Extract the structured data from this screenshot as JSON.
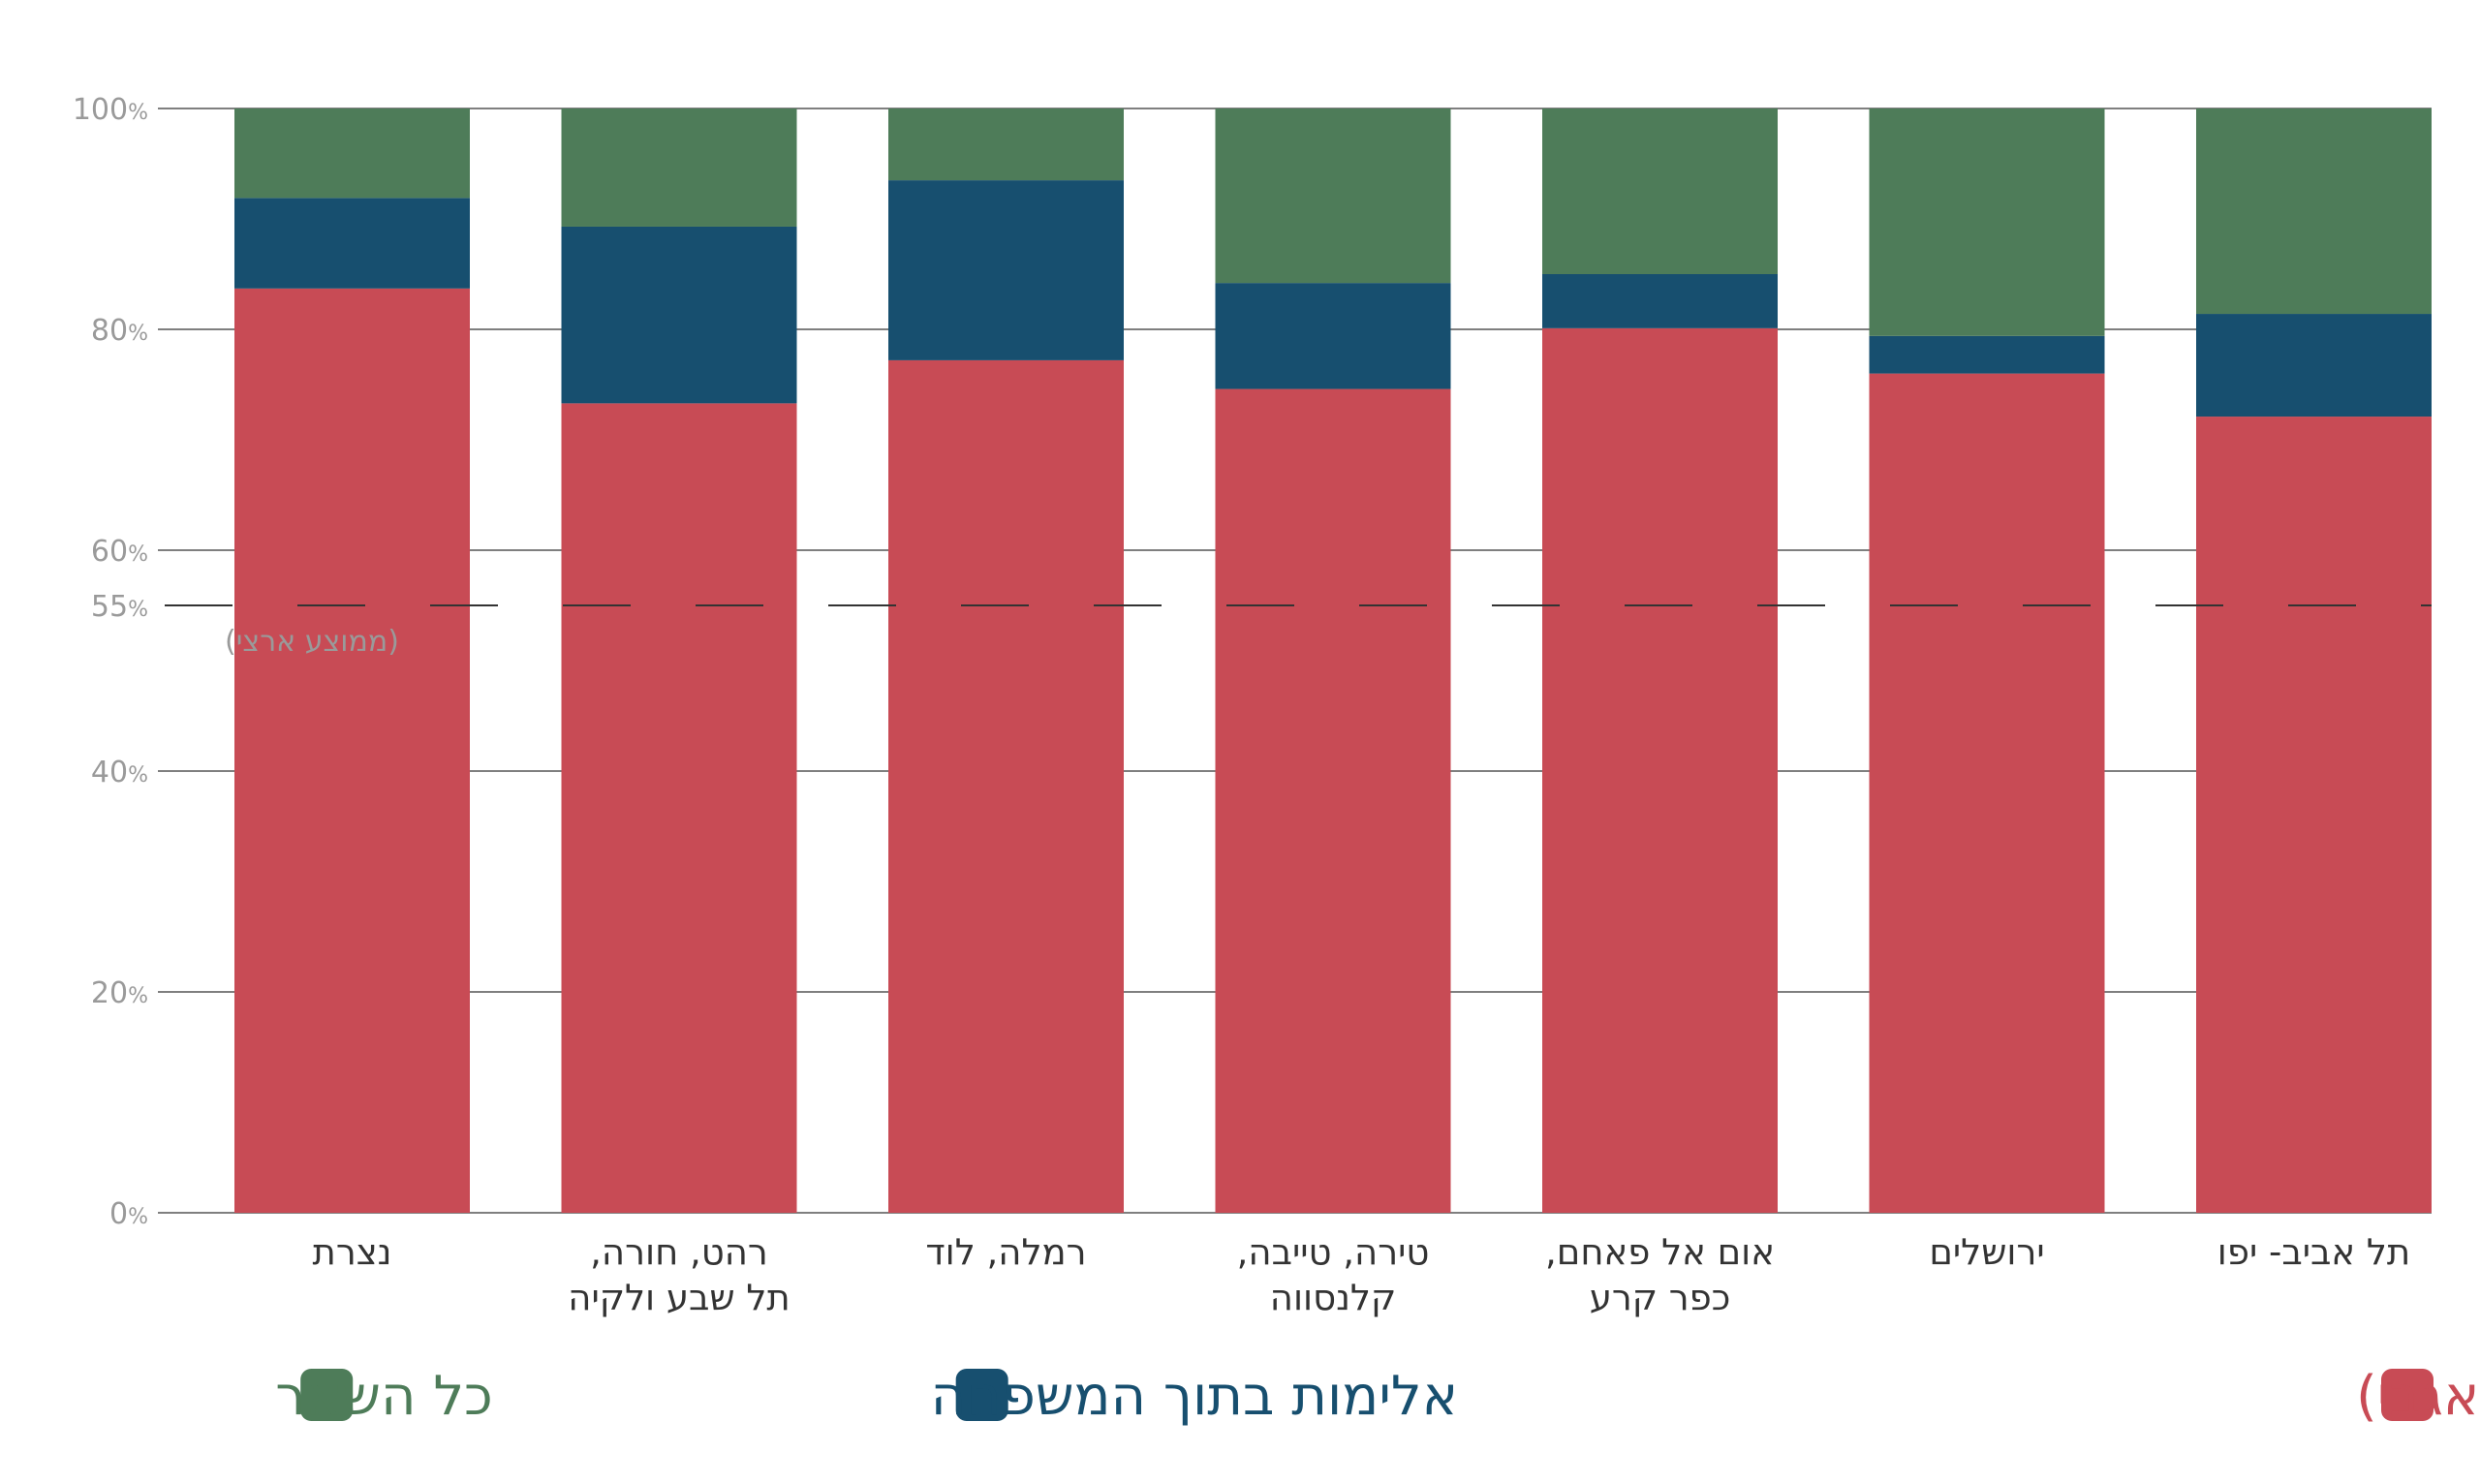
{
  "chart_data": {
    "type": "bar",
    "stacked": true,
    "categories": [
      [
        "נצרת"
      ],
      [
        "רהט, חורה,",
        "תל שבע ולקיה"
      ],
      [
        "רמלה, לוד"
      ],
      [
        "טירה, טייבה,",
        "קלנסווה"
      ],
      [
        "אום אל פאחם,",
        "כפר קרע"
      ],
      [
        "ירושלים"
      ],
      [
        "תל אביב- יפו"
      ]
    ],
    "series": [
      {
        "name": "אלימות בין חמולות, ארגוני פשע וכנופיות (כולל נזק אגבי)",
        "color": "#c84b55",
        "values": [
          83.7,
          73.3,
          77.2,
          74.6,
          80.1,
          76.0,
          72.1
        ]
      },
      {
        "name": "אלימות בתוך המשפחה",
        "color": "#174f6f",
        "values": [
          8.2,
          16.0,
          16.3,
          9.6,
          4.9,
          3.4,
          9.3
        ]
      },
      {
        "name": "כל השאר",
        "color": "#4e7c59",
        "values": [
          8.1,
          10.7,
          6.5,
          15.8,
          15.0,
          20.6,
          18.6
        ]
      }
    ],
    "ylim": [
      0,
      100
    ],
    "yticks": [
      {
        "value": 0,
        "label": "0%"
      },
      {
        "value": 20,
        "label": "20%"
      },
      {
        "value": 40,
        "label": "40%"
      },
      {
        "value": 60,
        "label": "60%"
      },
      {
        "value": 80,
        "label": "80%"
      },
      {
        "value": 100,
        "label": "100%"
      }
    ],
    "reference_line": {
      "value": 55,
      "label": "55%",
      "sublabel": "(ממוצע ארצי)"
    },
    "grid": true,
    "legend_position": "bottom",
    "xlabel": "",
    "ylabel": "",
    "title": ""
  }
}
